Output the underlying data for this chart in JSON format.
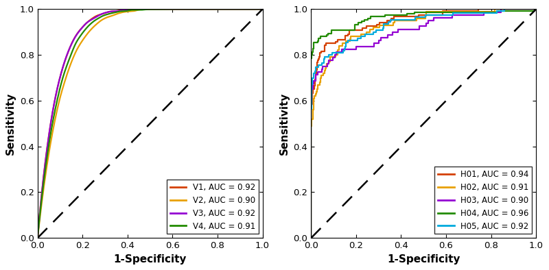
{
  "left_curves": {
    "V1": {
      "color": "#d44000",
      "auc": 0.92,
      "label": "V1, AUC = 0.92"
    },
    "V2": {
      "color": "#e8a000",
      "auc": 0.9,
      "label": "V2, AUC = 0.90"
    },
    "V3": {
      "color": "#9400d3",
      "auc": 0.92,
      "label": "V3, AUC = 0.92"
    },
    "V4": {
      "color": "#228b00",
      "auc": 0.91,
      "label": "V4, AUC = 0.91"
    }
  },
  "right_curves": {
    "H01": {
      "color": "#d44000",
      "auc": 0.94,
      "label": "H01, AUC = 0.94"
    },
    "H02": {
      "color": "#e8a000",
      "auc": 0.91,
      "label": "H02, AUC = 0.91"
    },
    "H03": {
      "color": "#9400d3",
      "auc": 0.9,
      "label": "H03, AUC = 0.90"
    },
    "H04": {
      "color": "#228b00",
      "auc": 0.96,
      "label": "H04, AUC = 0.96"
    },
    "H05": {
      "color": "#00aadd",
      "auc": 0.92,
      "label": "H05, AUC = 0.92"
    }
  },
  "xlabel": "1-Specificity",
  "ylabel": "Sensitivity",
  "xlim": [
    0,
    1
  ],
  "ylim": [
    0,
    1
  ],
  "linewidth": 1.6,
  "legend_fontsize": 8.5,
  "axis_label_fontsize": 11,
  "tick_fontsize": 9.5
}
